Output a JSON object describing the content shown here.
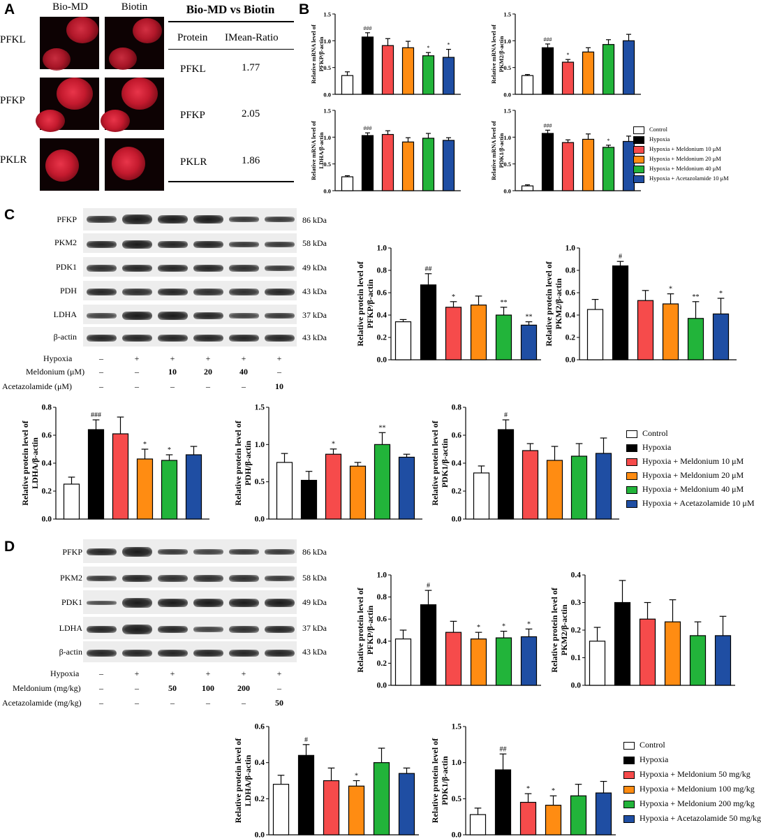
{
  "panel_letters": {
    "a": "A",
    "b": "B",
    "c": "C",
    "d": "D"
  },
  "panel_a": {
    "columns": [
      "Bio-MD",
      "Biotin"
    ],
    "rows": [
      "PFKL",
      "PFKP",
      "PKLR"
    ],
    "table_title": "Bio-MD vs Biotin",
    "table_header": [
      "Protein",
      "IMean-Ratio"
    ],
    "table_rows": [
      [
        "PFKL",
        "1.77"
      ],
      [
        "PFKP",
        "2.05"
      ],
      [
        "PKLR",
        "1.86"
      ]
    ]
  },
  "colors": {
    "control": "#ffffff",
    "hypoxia": "#000000",
    "red": "#f64b4b",
    "orange": "#ff8c12",
    "green": "#22b43a",
    "blue": "#1f4ea3"
  },
  "legend_c": [
    "Control",
    "Hypoxia",
    "Hypoxia + Meldonium 10 μM",
    "Hypoxia + Meldonium 20 μM",
    "Hypoxia + Meldonium 40 μM",
    "Hypoxia + Acetazolamide 10 μM"
  ],
  "legend_d": [
    "Control",
    "Hypoxia",
    "Hypoxia + Meldonium 50 mg/kg",
    "Hypoxia + Meldonium 100 mg/kg",
    "Hypoxia + Meldonium 200 mg/kg",
    "Hypoxia + Acetazolamide 50 mg/kg"
  ],
  "blot_c": {
    "proteins": [
      "PFKP",
      "PKM2",
      "PDK1",
      "PDH",
      "LDHA",
      "β-actin"
    ],
    "kda": [
      "86 kDa",
      "58 kDa",
      "49 kDa",
      "43 kDa",
      "37 kDa",
      "43 kDa"
    ],
    "conditions": [
      {
        "label": "Hypoxia",
        "values": [
          "–",
          "+",
          "+",
          "+",
          "+",
          "+"
        ]
      },
      {
        "label": "Meldonium (μM)",
        "values": [
          "–",
          "–",
          "10",
          "20",
          "40",
          "–"
        ]
      },
      {
        "label": "Acetazolamide (μM)",
        "values": [
          "–",
          "–",
          "–",
          "–",
          "–",
          "10"
        ]
      }
    ]
  },
  "blot_d": {
    "proteins": [
      "PFKP",
      "PKM2",
      "PDK1",
      "LDHA",
      "β-actin"
    ],
    "kda": [
      "86 kDa",
      "58 kDa",
      "49 kDa",
      "37 kDa",
      "43 kDa"
    ],
    "conditions": [
      {
        "label": "Hypoxia",
        "values": [
          "–",
          "+",
          "+",
          "+",
          "+",
          "+"
        ]
      },
      {
        "label": "Meldonium (mg/kg)",
        "values": [
          "–",
          "–",
          "50",
          "100",
          "200",
          "–"
        ]
      },
      {
        "label": "Acetazolamide (mg/kg)",
        "values": [
          "–",
          "–",
          "–",
          "–",
          "–",
          "50"
        ]
      }
    ]
  },
  "chart_data": [
    {
      "id": "B1",
      "type": "bar",
      "ylabel": "Relative mRNA level of PFKP/β-actin",
      "ylim": [
        0,
        1.5
      ],
      "ticks": [
        0.0,
        0.5,
        1.0,
        1.5
      ],
      "values": [
        0.35,
        1.07,
        0.91,
        0.87,
        0.72,
        0.69
      ],
      "errors": [
        0.07,
        0.08,
        0.13,
        0.12,
        0.06,
        0.15
      ],
      "annotations": [
        "",
        "###",
        "",
        "",
        "*",
        "*"
      ]
    },
    {
      "id": "B2",
      "type": "bar",
      "ylabel": "Relative mRNA level of PKM2/β-actin",
      "ylim": [
        0,
        1.5
      ],
      "ticks": [
        0.0,
        0.5,
        1.0,
        1.5
      ],
      "values": [
        0.35,
        0.87,
        0.6,
        0.79,
        0.93,
        1.0
      ],
      "errors": [
        0.02,
        0.07,
        0.05,
        0.08,
        0.09,
        0.12
      ],
      "annotations": [
        "",
        "###",
        "*",
        "",
        "",
        ""
      ]
    },
    {
      "id": "B3",
      "type": "bar",
      "ylabel": "Relative mRNA level of LDHA/β-actin",
      "ylim": [
        0,
        1.5
      ],
      "ticks": [
        0.0,
        0.5,
        1.0,
        1.5
      ],
      "values": [
        0.26,
        1.03,
        1.05,
        0.91,
        0.98,
        0.94
      ],
      "errors": [
        0.02,
        0.05,
        0.07,
        0.08,
        0.09,
        0.05
      ],
      "annotations": [
        "",
        "###",
        "",
        "",
        "",
        ""
      ]
    },
    {
      "id": "B4",
      "type": "bar",
      "ylabel": "Relative mRNA level of PDK1/β-actin",
      "ylim": [
        0,
        1.5
      ],
      "ticks": [
        0.0,
        0.5,
        1.0,
        1.5
      ],
      "values": [
        0.09,
        1.07,
        0.9,
        0.96,
        0.81,
        0.92
      ],
      "errors": [
        0.02,
        0.06,
        0.05,
        0.1,
        0.04,
        0.1
      ],
      "annotations": [
        "",
        "###",
        "",
        "",
        "*",
        ""
      ]
    },
    {
      "id": "C1",
      "type": "bar",
      "ylabel": "Relative protein level of PFKP/β-actin",
      "ylim": [
        0,
        1.0
      ],
      "ticks": [
        0.0,
        0.2,
        0.4,
        0.6,
        0.8,
        1.0
      ],
      "values": [
        0.34,
        0.67,
        0.47,
        0.49,
        0.4,
        0.31
      ],
      "errors": [
        0.02,
        0.1,
        0.05,
        0.08,
        0.07,
        0.03
      ],
      "annotations": [
        "",
        "##",
        "*",
        "",
        "**",
        "**"
      ]
    },
    {
      "id": "C2",
      "type": "bar",
      "ylabel": "Relative protein level of PKM2/β-actin",
      "ylim": [
        0,
        1.0
      ],
      "ticks": [
        0.0,
        0.2,
        0.4,
        0.6,
        0.8,
        1.0
      ],
      "values": [
        0.45,
        0.84,
        0.53,
        0.5,
        0.37,
        0.41
      ],
      "errors": [
        0.09,
        0.04,
        0.09,
        0.09,
        0.15,
        0.14
      ],
      "annotations": [
        "",
        "#",
        "",
        "*",
        "**",
        "*"
      ]
    },
    {
      "id": "C3",
      "type": "bar",
      "ylabel": "Relative protein level of LDHA/β-actin",
      "ylim": [
        0,
        0.8
      ],
      "ticks": [
        0.0,
        0.2,
        0.4,
        0.6,
        0.8
      ],
      "values": [
        0.25,
        0.64,
        0.61,
        0.43,
        0.42,
        0.46
      ],
      "errors": [
        0.05,
        0.07,
        0.12,
        0.07,
        0.04,
        0.06
      ],
      "annotations": [
        "",
        "###",
        "",
        "*",
        "*",
        ""
      ]
    },
    {
      "id": "C4",
      "type": "bar",
      "ylabel": "Relative protein level of PDH/β-actin",
      "ylim": [
        0,
        1.5
      ],
      "ticks": [
        0.0,
        0.5,
        1.0,
        1.5
      ],
      "values": [
        0.76,
        0.52,
        0.87,
        0.71,
        1.0,
        0.83
      ],
      "errors": [
        0.12,
        0.12,
        0.07,
        0.05,
        0.16,
        0.04
      ],
      "annotations": [
        "",
        "",
        "*",
        "",
        "**",
        ""
      ]
    },
    {
      "id": "C5",
      "type": "bar",
      "ylabel": "Relative protein level of PDK1/β-actin",
      "ylim": [
        0,
        0.8
      ],
      "ticks": [
        0.0,
        0.2,
        0.4,
        0.6,
        0.8
      ],
      "values": [
        0.33,
        0.64,
        0.49,
        0.42,
        0.45,
        0.47
      ],
      "errors": [
        0.05,
        0.07,
        0.05,
        0.1,
        0.09,
        0.11
      ],
      "annotations": [
        "",
        "#",
        "",
        "",
        "",
        ""
      ]
    },
    {
      "id": "D1",
      "type": "bar",
      "ylabel": "Relative protein level of PFKP/β-actin",
      "ylim": [
        0,
        1.0
      ],
      "ticks": [
        0.0,
        0.2,
        0.4,
        0.6,
        0.8,
        1.0
      ],
      "values": [
        0.42,
        0.73,
        0.48,
        0.42,
        0.43,
        0.44
      ],
      "errors": [
        0.08,
        0.13,
        0.1,
        0.06,
        0.06,
        0.07
      ],
      "annotations": [
        "",
        "#",
        "",
        "*",
        "*",
        "*"
      ]
    },
    {
      "id": "D2",
      "type": "bar",
      "ylabel": "Relative protein level of PKM2/β-actin",
      "ylim": [
        0,
        0.4
      ],
      "ticks": [
        0.0,
        0.1,
        0.2,
        0.3,
        0.4
      ],
      "values": [
        0.16,
        0.3,
        0.24,
        0.23,
        0.18,
        0.18
      ],
      "errors": [
        0.05,
        0.08,
        0.06,
        0.08,
        0.05,
        0.07
      ],
      "annotations": [
        "",
        "",
        "",
        "",
        "",
        ""
      ]
    },
    {
      "id": "D3",
      "type": "bar",
      "ylabel": "Relative protein level of LDHA/β-actin",
      "ylim": [
        0,
        0.6
      ],
      "ticks": [
        0.0,
        0.2,
        0.4,
        0.6
      ],
      "values": [
        0.28,
        0.44,
        0.3,
        0.27,
        0.4,
        0.34
      ],
      "errors": [
        0.05,
        0.06,
        0.07,
        0.03,
        0.08,
        0.03
      ],
      "annotations": [
        "",
        "#",
        "",
        "*",
        "",
        ""
      ]
    },
    {
      "id": "D4",
      "type": "bar",
      "ylabel": "Relative protein level of PDK1/β-actin",
      "ylim": [
        0,
        1.5
      ],
      "ticks": [
        0.0,
        0.5,
        1.0,
        1.5
      ],
      "values": [
        0.28,
        0.9,
        0.45,
        0.41,
        0.54,
        0.58
      ],
      "errors": [
        0.09,
        0.22,
        0.12,
        0.13,
        0.16,
        0.16
      ],
      "annotations": [
        "",
        "##",
        "*",
        "*",
        "",
        ""
      ]
    }
  ]
}
